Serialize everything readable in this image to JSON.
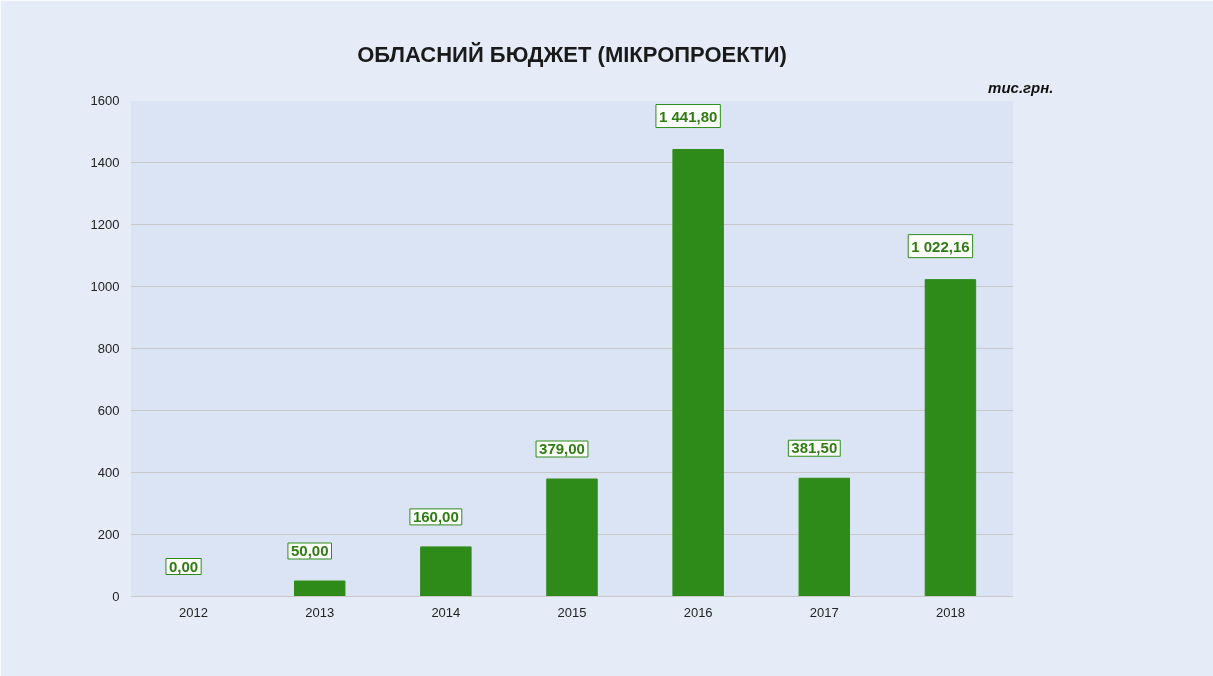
{
  "chart_data": {
    "type": "bar",
    "title": "ОБЛАСНИЙ БЮДЖЕТ (МІКРОПРОЕКТИ)",
    "categories": [
      "2012",
      "2013",
      "2014",
      "2015",
      "2016",
      "2017",
      "2018"
    ],
    "values": [
      0,
      50,
      160,
      379,
      1441.8,
      381.5,
      1022.16
    ],
    "value_labels": [
      "0,00",
      "50,00",
      "160,00",
      "379,00",
      "1 441,80",
      "381,50",
      "1 022,16"
    ],
    "color": "#2e8b1a",
    "ylim": [
      0,
      1600
    ],
    "yticks": [
      0,
      200,
      400,
      600,
      800,
      1000,
      1200,
      1400,
      1600
    ],
    "grid": "y",
    "annotations": [
      "тис.грн."
    ]
  }
}
